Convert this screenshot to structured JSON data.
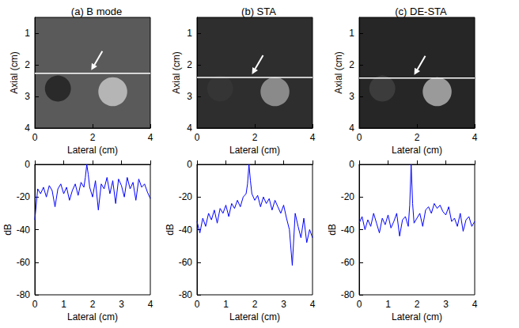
{
  "chart_data": [
    {
      "type": "image",
      "title": "(a) B mode",
      "x_label": "Lateral (cm)",
      "y_label": "Axial (cm)",
      "xlim": [
        0,
        4
      ],
      "xticks": [
        0,
        2,
        4
      ],
      "ylim": [
        0.5,
        4
      ],
      "yticks": [
        1,
        2,
        3,
        4
      ],
      "color": "#5a5a5a",
      "line_y": 2.27,
      "arrow": {
        "x": 1.9,
        "y": 2.27
      },
      "inclusions": [
        {
          "x": 0.8,
          "y": 2.75,
          "r": 0.45,
          "color": "#2a2a2a"
        },
        {
          "x": 2.7,
          "y": 2.85,
          "r": 0.5,
          "color": "#b5b5b5"
        }
      ]
    },
    {
      "type": "image",
      "title": "(b) STA",
      "x_label": "Lateral (cm)",
      "y_label": "Axial (cm)",
      "xlim": [
        0,
        4
      ],
      "xticks": [
        0,
        2,
        4
      ],
      "ylim": [
        0.5,
        4
      ],
      "yticks": [
        1,
        2,
        3,
        4
      ],
      "color": "#2e2e2e",
      "line_y": 2.4,
      "arrow": {
        "x": 1.85,
        "y": 2.4
      },
      "inclusions": [
        {
          "x": 0.8,
          "y": 2.75,
          "r": 0.45,
          "color": "#353535"
        },
        {
          "x": 2.7,
          "y": 2.85,
          "r": 0.5,
          "color": "#8a8a8a"
        }
      ]
    },
    {
      "type": "image",
      "title": "(c) DE-STA",
      "x_label": "Lateral (cm)",
      "y_label": "Axial (cm)",
      "xlim": [
        0,
        4
      ],
      "xticks": [
        0,
        2,
        4
      ],
      "ylim": [
        0.5,
        4
      ],
      "yticks": [
        1,
        2,
        3,
        4
      ],
      "color": "#262626",
      "line_y": 2.42,
      "arrow": {
        "x": 1.85,
        "y": 2.42
      },
      "inclusions": [
        {
          "x": 0.8,
          "y": 2.75,
          "r": 0.45,
          "color": "#3c3c3c"
        },
        {
          "x": 2.7,
          "y": 2.85,
          "r": 0.5,
          "color": "#9a9a9a"
        }
      ]
    },
    {
      "type": "line",
      "x_label": "Lateral (cm)",
      "y_label": "dB",
      "color": "#0000ff",
      "xlim": [
        0,
        4
      ],
      "xticks": [
        0,
        1,
        2,
        3,
        4
      ],
      "ylim": [
        -80,
        0
      ],
      "yticks": [
        -80,
        -60,
        -40,
        -20,
        0
      ],
      "x": [
        0,
        0.1,
        0.2,
        0.3,
        0.4,
        0.5,
        0.6,
        0.7,
        0.8,
        0.9,
        1.0,
        1.1,
        1.2,
        1.3,
        1.4,
        1.5,
        1.6,
        1.7,
        1.75,
        1.8,
        1.85,
        1.9,
        2.0,
        2.1,
        2.2,
        2.3,
        2.4,
        2.5,
        2.6,
        2.7,
        2.8,
        2.9,
        3.0,
        3.1,
        3.2,
        3.3,
        3.4,
        3.5,
        3.6,
        3.7,
        3.8,
        3.9,
        4.0
      ],
      "values": [
        -34,
        -15,
        -18,
        -14,
        -20,
        -13,
        -16,
        -26,
        -15,
        -12,
        -18,
        -14,
        -22,
        -16,
        -12,
        -19,
        -11,
        -14,
        -8,
        0,
        -6,
        -14,
        -20,
        -10,
        -28,
        -12,
        -15,
        -8,
        -18,
        -10,
        -24,
        -9,
        -13,
        -20,
        -8,
        -15,
        -11,
        -22,
        -9,
        -14,
        -12,
        -17,
        -21
      ]
    },
    {
      "type": "line",
      "x_label": "Lateral (cm)",
      "y_label": "dB",
      "color": "#0000ff",
      "xlim": [
        0,
        4
      ],
      "xticks": [
        0,
        1,
        2,
        3,
        4
      ],
      "ylim": [
        -80,
        0
      ],
      "yticks": [
        -80,
        -60,
        -40,
        -20,
        0
      ],
      "x": [
        0,
        0.1,
        0.2,
        0.3,
        0.4,
        0.5,
        0.6,
        0.7,
        0.8,
        0.9,
        1.0,
        1.1,
        1.2,
        1.3,
        1.4,
        1.5,
        1.6,
        1.7,
        1.75,
        1.8,
        1.85,
        1.9,
        2.0,
        2.1,
        2.2,
        2.3,
        2.4,
        2.5,
        2.6,
        2.7,
        2.8,
        2.9,
        3.0,
        3.1,
        3.2,
        3.3,
        3.4,
        3.5,
        3.6,
        3.7,
        3.8,
        3.9,
        4.0
      ],
      "values": [
        -35,
        -42,
        -33,
        -38,
        -30,
        -34,
        -28,
        -36,
        -27,
        -30,
        -25,
        -32,
        -24,
        -27,
        -22,
        -26,
        -20,
        -18,
        -12,
        0,
        -10,
        -18,
        -22,
        -19,
        -26,
        -20,
        -24,
        -21,
        -28,
        -22,
        -26,
        -30,
        -25,
        -33,
        -40,
        -62,
        -30,
        -38,
        -45,
        -33,
        -48,
        -40,
        -45
      ]
    },
    {
      "type": "line",
      "x_label": "Lateral (cm)",
      "y_label": "dB",
      "color": "#0000ff",
      "xlim": [
        0,
        4
      ],
      "xticks": [
        0,
        1,
        2,
        3,
        4
      ],
      "ylim": [
        -80,
        0
      ],
      "yticks": [
        -80,
        -60,
        -40,
        -20,
        0
      ],
      "x": [
        0,
        0.1,
        0.2,
        0.3,
        0.4,
        0.5,
        0.6,
        0.7,
        0.8,
        0.9,
        1.0,
        1.1,
        1.2,
        1.3,
        1.4,
        1.5,
        1.6,
        1.7,
        1.75,
        1.8,
        1.85,
        1.9,
        2.0,
        2.1,
        2.2,
        2.3,
        2.4,
        2.5,
        2.6,
        2.7,
        2.8,
        2.9,
        3.0,
        3.1,
        3.2,
        3.3,
        3.4,
        3.5,
        3.6,
        3.7,
        3.8,
        3.9,
        4.0
      ],
      "values": [
        -36,
        -32,
        -40,
        -34,
        -38,
        -30,
        -36,
        -42,
        -33,
        -37,
        -31,
        -39,
        -35,
        -30,
        -44,
        -34,
        -32,
        -38,
        -25,
        0,
        -24,
        -36,
        -33,
        -30,
        -38,
        -28,
        -26,
        -30,
        -24,
        -27,
        -25,
        -29,
        -31,
        -26,
        -35,
        -33,
        -38,
        -30,
        -41,
        -34,
        -32,
        -38,
        -35
      ]
    }
  ]
}
